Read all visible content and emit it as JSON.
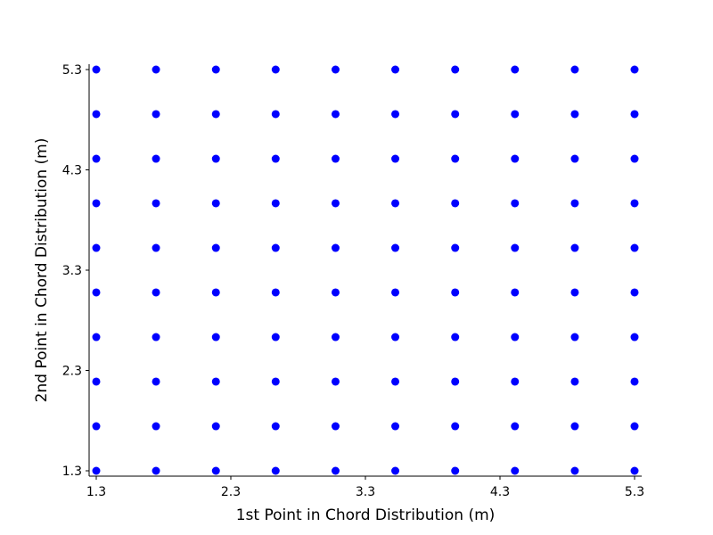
{
  "chart_data": {
    "type": "scatter",
    "title": "",
    "xlabel": "1st Point in Chord Distribution (m)",
    "ylabel": "2nd Point in Chord Distribution (m)",
    "xlim": [
      1.3,
      5.3
    ],
    "ylim": [
      1.3,
      5.3
    ],
    "x_ticks": [
      "1.3",
      "2.3",
      "3.3",
      "4.3",
      "5.3"
    ],
    "y_ticks": [
      "1.3",
      "2.3",
      "3.3",
      "4.3",
      "5.3"
    ],
    "grid": false,
    "legend": "none",
    "point_color": "#0000ff",
    "x_values": [
      1.3,
      1.744,
      2.189,
      2.633,
      3.078,
      3.522,
      3.967,
      4.411,
      4.856,
      5.3
    ],
    "y_values": [
      1.3,
      1.744,
      2.189,
      2.633,
      3.078,
      3.522,
      3.967,
      4.411,
      4.856,
      5.3
    ]
  }
}
